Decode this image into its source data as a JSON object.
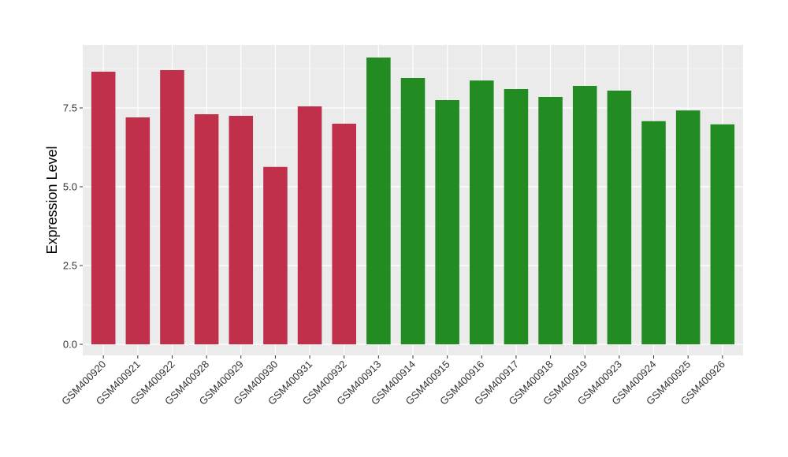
{
  "chart_data": {
    "type": "bar",
    "title": "",
    "xlabel": "",
    "ylabel": "Expression Level",
    "ylim": [
      -0.35,
      9.5
    ],
    "yticks": [
      "0.0",
      "2.5",
      "5.0",
      "7.5"
    ],
    "ytick_values": [
      0,
      2.5,
      5,
      7.5
    ],
    "grid": true,
    "legend": "none",
    "categories": [
      "GSM400920",
      "GSM400921",
      "GSM400922",
      "GSM400928",
      "GSM400929",
      "GSM400930",
      "GSM400931",
      "GSM400932",
      "GSM400913",
      "GSM400914",
      "GSM400915",
      "GSM400916",
      "GSM400917",
      "GSM400918",
      "GSM400919",
      "GSM400923",
      "GSM400924",
      "GSM400925",
      "GSM400926"
    ],
    "values": [
      8.65,
      7.2,
      8.7,
      7.3,
      7.25,
      5.63,
      7.55,
      7.0,
      9.1,
      8.45,
      7.75,
      8.37,
      8.1,
      7.85,
      8.2,
      8.05,
      7.08,
      7.42,
      6.98
    ],
    "bar_colors": [
      "#c0304a",
      "#c0304a",
      "#c0304a",
      "#c0304a",
      "#c0304a",
      "#c0304a",
      "#c0304a",
      "#c0304a",
      "#228b22",
      "#228b22",
      "#228b22",
      "#228b22",
      "#228b22",
      "#228b22",
      "#228b22",
      "#228b22",
      "#228b22",
      "#228b22",
      "#228b22"
    ],
    "panel_background": "#ebebeb",
    "grid_color": "#ffffff"
  }
}
